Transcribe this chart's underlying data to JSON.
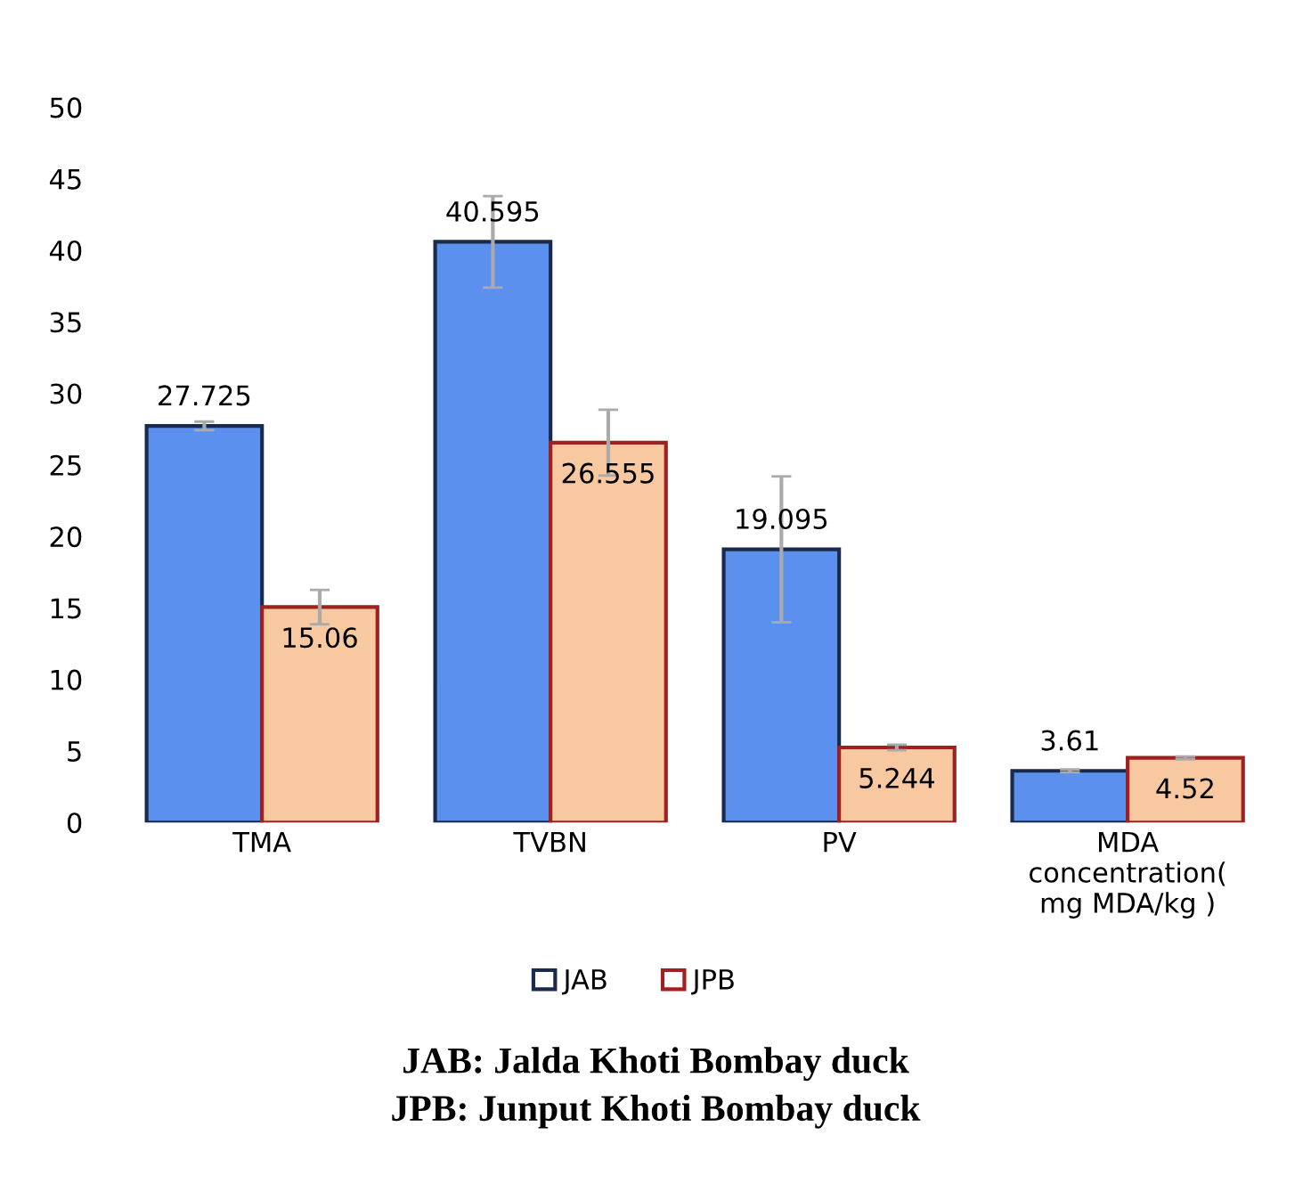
{
  "chart_data": {
    "type": "bar",
    "categories": [
      "TMA",
      "TVBN",
      "PV",
      "MDA concentration( mg MDA/kg )"
    ],
    "series": [
      {
        "name": "JAB",
        "color": "#5b90ee",
        "values": [
          27.725,
          40.595,
          19.095,
          3.61
        ],
        "errors": [
          0.3,
          3.2,
          5.1,
          0.1
        ]
      },
      {
        "name": "JPB",
        "color": "#f8c9a0",
        "values": [
          15.06,
          26.555,
          5.244,
          4.52
        ],
        "errors": [
          1.2,
          2.3,
          0.2,
          0.1
        ]
      }
    ],
    "ylim": [
      0,
      50
    ],
    "yticks": [
      0,
      5,
      10,
      15,
      20,
      25,
      30,
      35,
      40,
      45,
      50
    ],
    "data_labels": true,
    "grid": false,
    "legend": "bottom",
    "annotations": [
      "JAB: Jalda Khoti Bombay duck",
      "JPB: Junput Khoti Bombay duck"
    ]
  }
}
